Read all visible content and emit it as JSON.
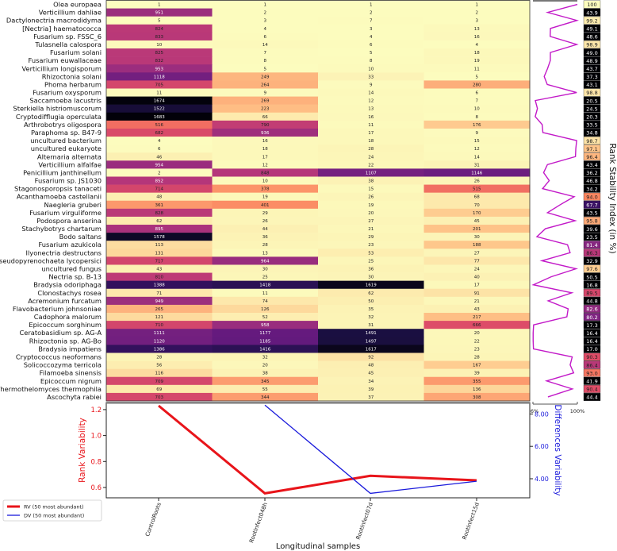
{
  "chart_data": [
    {
      "type": "heatmap",
      "title": "",
      "columns": [
        "ControlRoots",
        "RootInfect048h",
        "RootInfect07d",
        "RootInfect15d"
      ],
      "value_meaning": "rank",
      "color_range": [
        1,
        1700
      ],
      "rows": [
        {
          "name": "Olea europaea",
          "ranks": [
            1,
            1,
            1,
            1
          ],
          "rsi": 100
        },
        {
          "name": "Verticillium dahliae",
          "ranks": [
            951,
            2,
            2,
            2
          ],
          "rsi": 43.9
        },
        {
          "name": "Dactylonectria macrodidyma",
          "ranks": [
            5,
            3,
            7,
            3
          ],
          "rsi": 99.2
        },
        {
          "name": "[Nectria] haematococca",
          "ranks": [
            824,
            4,
            3,
            13
          ],
          "rsi": 49.1
        },
        {
          "name": "Fusarium sp. FSSC_6",
          "ranks": [
            833,
            6,
            4,
            16
          ],
          "rsi": 48.6
        },
        {
          "name": "Tulasnella calospora",
          "ranks": [
            10,
            14,
            6,
            4
          ],
          "rsi": 98.9
        },
        {
          "name": "Fusarium solani",
          "ranks": [
            825,
            7,
            5,
            18
          ],
          "rsi": 49.0
        },
        {
          "name": "Fusarium euwallaceae",
          "ranks": [
            832,
            8,
            8,
            19
          ],
          "rsi": 48.9
        },
        {
          "name": "Verticillium longisporum",
          "ranks": [
            953,
            5,
            10,
            11
          ],
          "rsi": 43.7
        },
        {
          "name": "Rhizoctonia solani",
          "ranks": [
            1118,
            249,
            33,
            5
          ],
          "rsi": 37.3
        },
        {
          "name": "Phoma herbarum",
          "ranks": [
            705,
            264,
            9,
            280
          ],
          "rsi": 43.1
        },
        {
          "name": "Fusarium oxysporum",
          "ranks": [
            11,
            9,
            14,
            6
          ],
          "rsi": 98.8
        },
        {
          "name": "Saccamoeba lacustris",
          "ranks": [
            1674,
            269,
            12,
            7
          ],
          "rsi": 20.5
        },
        {
          "name": "Sterkiella histriomuscorum",
          "ranks": [
            1522,
            223,
            13,
            10
          ],
          "rsi": 24.5
        },
        {
          "name": "Cryptodifflugia operculata",
          "ranks": [
            1683,
            66,
            16,
            8
          ],
          "rsi": 20.3
        },
        {
          "name": "Arthrobotrys oligospora",
          "ranks": [
            516,
            790,
            11,
            176
          ],
          "rsi": 33.5
        },
        {
          "name": "Paraphoma sp. B47-9",
          "ranks": [
            682,
            936,
            17,
            9
          ],
          "rsi": 34.8
        },
        {
          "name": "uncultured bacterium",
          "ranks": [
            4,
            16,
            18,
            15
          ],
          "rsi": 98.7
        },
        {
          "name": "uncultured eukaryote",
          "ranks": [
            6,
            18,
            28,
            12
          ],
          "rsi": 97.1
        },
        {
          "name": "Alternaria alternata",
          "ranks": [
            46,
            17,
            24,
            14
          ],
          "rsi": 96.4
        },
        {
          "name": "Verticillium alfalfae",
          "ranks": [
            954,
            12,
            22,
            31
          ],
          "rsi": 43.4
        },
        {
          "name": "Penicillium janthinellum",
          "ranks": [
            2,
            848,
            1107,
            1146
          ],
          "rsi": 36.2
        },
        {
          "name": "Fusarium sp. JS1030",
          "ranks": [
            852,
            10,
            38,
            26
          ],
          "rsi": 46.8
        },
        {
          "name": "Stagonosporopsis tanaceti",
          "ranks": [
            714,
            378,
            15,
            515
          ],
          "rsi": 34.2
        },
        {
          "name": "Acanthamoeba castellanii",
          "ranks": [
            48,
            19,
            26,
            68
          ],
          "rsi": 94.0
        },
        {
          "name": "Naegleria gruberi",
          "ranks": [
            361,
            401,
            19,
            70
          ],
          "rsi": 67.7
        },
        {
          "name": "Fusarium virguliforme",
          "ranks": [
            828,
            29,
            20,
            170
          ],
          "rsi": 43.5
        },
        {
          "name": "Podospora anserina",
          "ranks": [
            62,
            26,
            27,
            45
          ],
          "rsi": 95.8
        },
        {
          "name": "Stachybotrys chartarum",
          "ranks": [
            895,
            44,
            21,
            201
          ],
          "rsi": 39.6
        },
        {
          "name": "Bodo saltans",
          "ranks": [
            1578,
            36,
            29,
            30
          ],
          "rsi": 23.5
        },
        {
          "name": "Fusarium azukicola",
          "ranks": [
            113,
            28,
            23,
            188
          ],
          "rsi": 81.4
        },
        {
          "name": "Ilyonectria destructans",
          "ranks": [
            131,
            13,
            53,
            27
          ],
          "rsi": 86.3
        },
        {
          "name": "Pseudopyrenochaeta lycopersici",
          "ranks": [
            717,
            964,
            25,
            77
          ],
          "rsi": 32.9
        },
        {
          "name": "uncultured fungus",
          "ranks": [
            43,
            30,
            36,
            24
          ],
          "rsi": 97.6
        },
        {
          "name": "Nectria sp. B-13",
          "ranks": [
            810,
            25,
            30,
            40
          ],
          "rsi": 50.5
        },
        {
          "name": "Bradysia odoriphaga",
          "ranks": [
            1388,
            1418,
            1619,
            17
          ],
          "rsi": 16.8
        },
        {
          "name": "Clonostachys rosea",
          "ranks": [
            71,
            11,
            62,
            91
          ],
          "rsi": 89.5
        },
        {
          "name": "Acremonium furcatum",
          "ranks": [
            949,
            74,
            50,
            21
          ],
          "rsi": 44.8
        },
        {
          "name": "Flavobacterium johnsoniae",
          "ranks": [
            265,
            126,
            35,
            43
          ],
          "rsi": 82.6
        },
        {
          "name": "Cadophora malorum",
          "ranks": [
            121,
            52,
            32,
            217
          ],
          "rsi": 80.2
        },
        {
          "name": "Epicoccum sorghinum",
          "ranks": [
            710,
            958,
            31,
            666
          ],
          "rsi": 17.3
        },
        {
          "name": "Ceratobasidium sp. AG-A",
          "ranks": [
            1111,
            1177,
            1491,
            20
          ],
          "rsi": 16.4
        },
        {
          "name": "Rhizoctonia sp. AG-Bo",
          "ranks": [
            1120,
            1185,
            1497,
            22
          ],
          "rsi": 16.4
        },
        {
          "name": "Bradysia impatiens",
          "ranks": [
            1386,
            1416,
            1617,
            23
          ],
          "rsi": 17.0
        },
        {
          "name": "Cryptococcus neoformans",
          "ranks": [
            28,
            32,
            92,
            28
          ],
          "rsi": 90.3
        },
        {
          "name": "Solicoccozyma terricola",
          "ranks": [
            56,
            20,
            48,
            167
          ],
          "rsi": 86.4
        },
        {
          "name": "Filamoeba sinensis",
          "ranks": [
            116,
            38,
            45,
            39
          ],
          "rsi": 93.0
        },
        {
          "name": "Epicoccum nigrum",
          "ranks": [
            709,
            345,
            34,
            355
          ],
          "rsi": 41.9
        },
        {
          "name": "Thermothelomyces thermophila",
          "ranks": [
            69,
            55,
            39,
            136
          ],
          "rsi": 90.4
        },
        {
          "name": "Ascochyta rabiei",
          "ranks": [
            703,
            344,
            37,
            308
          ],
          "rsi": 44.4
        }
      ],
      "rsi_axis": {
        "label": "Rank Stability Index (in %)",
        "min_label": "16%",
        "max_label": "100%",
        "range": [
          16,
          100
        ]
      }
    },
    {
      "type": "line",
      "categories": [
        "ControlRoots",
        "RootInfect048h",
        "RootInfect07d",
        "RootInfect15d"
      ],
      "xlabel": "Longitudinal samples",
      "ylabel": "Rank Variability",
      "y2label": "Differences Variability",
      "ylim": [
        0.52,
        1.27
      ],
      "y2lim": [
        2.75,
        8.75
      ],
      "yticks": [
        "0.6",
        "0.8",
        "1.0",
        "1.2"
      ],
      "y2ticks": [
        "4.00",
        "6.00",
        "8.00"
      ],
      "series": [
        {
          "name": "RV (50 most abundant)",
          "axis": "left",
          "color": "#e8141a",
          "values": [
            1.23,
            0.555,
            0.69,
            0.655
          ]
        },
        {
          "name": "DV (50 most abundant)",
          "axis": "right",
          "color": "#1a1adb",
          "values": [
            null,
            8.55,
            3.1,
            3.85
          ]
        }
      ],
      "legend": "bottom-left"
    }
  ]
}
